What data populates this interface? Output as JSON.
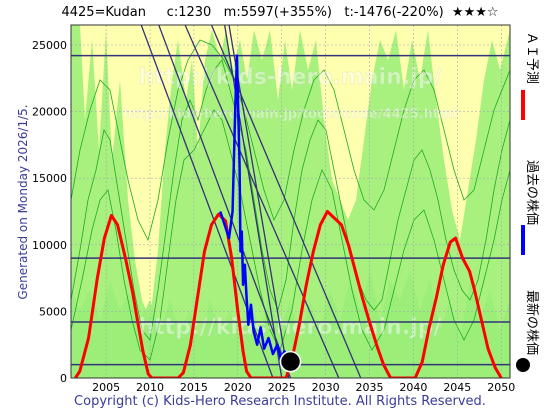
{
  "header": {
    "title": "4425=Kudan     c:1230   m:5597(+355%)   t:-1476(-220%)  ★★★☆"
  },
  "side_label": "Generated on Monday 2026/1/5.",
  "legend": {
    "ai_forecast": "ＡＩ予測",
    "past_price": "過去の株価",
    "latest_price": "最新の株価"
  },
  "watermarks": {
    "line1": "http://kids-hero.main.jp/",
    "line2": "http://kids-hero.main.jp/tools/code/4425.html"
  },
  "copyright": "Copyright (c) Kids-Hero Research Institute. All Rights Reserved.",
  "colors": {
    "ai_forecast": "#ff0000",
    "past_price": "#0000ff",
    "latest_price": "#000000",
    "band_green": "#99ee77",
    "band_yellow": "#ffffb0",
    "band_green_line": "#1faa1f",
    "trend_line": "#333377",
    "copyright": "#3b3b9a"
  },
  "chart_data": {
    "type": "line",
    "xlim": [
      2001,
      2051
    ],
    "ylim": [
      0,
      26500
    ],
    "x_ticks": [
      2005,
      2010,
      2015,
      2020,
      2025,
      2030,
      2035,
      2040,
      2045,
      2050
    ],
    "y_ticks": [
      0,
      5000,
      10000,
      15000,
      20000,
      25000
    ],
    "horizontal_levels": [
      1000,
      4200,
      9000,
      24200
    ],
    "trend_lines": [
      [
        [
          2009.0,
          26500
        ],
        [
          2024.0,
          0
        ]
      ],
      [
        [
          2011.0,
          26500
        ],
        [
          2026.0,
          0
        ]
      ],
      [
        [
          2014.0,
          26500
        ],
        [
          2031.5,
          0
        ]
      ],
      [
        [
          2017.0,
          26500
        ],
        [
          2034.0,
          0
        ]
      ],
      [
        [
          2018.5,
          26500
        ],
        [
          2025.0,
          0
        ]
      ],
      [
        [
          2019.0,
          26500
        ],
        [
          2025.8,
          0
        ]
      ]
    ],
    "series": [
      {
        "name": "ＡＩ予測",
        "points": [
          [
            2001.5,
            0
          ],
          [
            2002,
            500
          ],
          [
            2003,
            3000
          ],
          [
            2004,
            7500
          ],
          [
            2004.8,
            10500
          ],
          [
            2005.6,
            12200
          ],
          [
            2006.3,
            11500
          ],
          [
            2007.2,
            9000
          ],
          [
            2008,
            6500
          ],
          [
            2008.6,
            4200
          ],
          [
            2009.2,
            2000
          ],
          [
            2009.8,
            300
          ],
          [
            2010.2,
            0
          ],
          [
            2013.2,
            0
          ],
          [
            2013.8,
            400
          ],
          [
            2014.6,
            2500
          ],
          [
            2015.4,
            6000
          ],
          [
            2016.2,
            9500
          ],
          [
            2017,
            11500
          ],
          [
            2017.8,
            12300
          ],
          [
            2018.6,
            11800
          ],
          [
            2019.3,
            9000
          ],
          [
            2020,
            5000
          ],
          [
            2020.6,
            2000
          ],
          [
            2021,
            500
          ],
          [
            2021.5,
            0
          ],
          [
            2025.5,
            0
          ],
          [
            2026.2,
            1500
          ],
          [
            2027,
            4000
          ],
          [
            2027.8,
            7000
          ],
          [
            2028.6,
            9500
          ],
          [
            2029.4,
            11500
          ],
          [
            2030.2,
            12500
          ],
          [
            2031,
            12000
          ],
          [
            2031.8,
            11500
          ],
          [
            2032.6,
            10000
          ],
          [
            2033.4,
            8000
          ],
          [
            2034.2,
            6000
          ],
          [
            2035,
            4200
          ],
          [
            2035.8,
            2500
          ],
          [
            2036.6,
            1000
          ],
          [
            2037.4,
            0
          ],
          [
            2040.2,
            0
          ],
          [
            2041,
            1200
          ],
          [
            2041.8,
            3800
          ],
          [
            2042.6,
            6000
          ],
          [
            2043.4,
            8500
          ],
          [
            2044.2,
            10200
          ],
          [
            2044.8,
            10500
          ],
          [
            2045.6,
            9000
          ],
          [
            2046.4,
            8000
          ],
          [
            2047,
            6500
          ],
          [
            2047.8,
            4200
          ],
          [
            2048.5,
            2200
          ],
          [
            2049.3,
            800
          ],
          [
            2050,
            0
          ]
        ]
      },
      {
        "name": "過去の株価",
        "points": [
          [
            2018.0,
            12500
          ],
          [
            2018.5,
            11500
          ],
          [
            2019.0,
            10500
          ],
          [
            2019.4,
            12500
          ],
          [
            2019.7,
            20000
          ],
          [
            2019.9,
            24200
          ],
          [
            2020.05,
            20000
          ],
          [
            2020.2,
            16000
          ],
          [
            2020.3,
            9500
          ],
          [
            2020.45,
            11000
          ],
          [
            2020.6,
            7000
          ],
          [
            2020.8,
            8500
          ],
          [
            2021.0,
            6000
          ],
          [
            2021.2,
            4000
          ],
          [
            2021.5,
            5500
          ],
          [
            2021.8,
            3500
          ],
          [
            2022.2,
            2500
          ],
          [
            2022.6,
            3800
          ],
          [
            2023.0,
            2200
          ],
          [
            2023.5,
            3000
          ],
          [
            2024.0,
            1800
          ],
          [
            2024.5,
            2500
          ],
          [
            2024.9,
            1400
          ],
          [
            2025.3,
            2000
          ],
          [
            2025.8,
            1400
          ]
        ]
      },
      {
        "name": "最新の株価",
        "points": [
          [
            2026.0,
            1230
          ]
        ]
      }
    ]
  }
}
